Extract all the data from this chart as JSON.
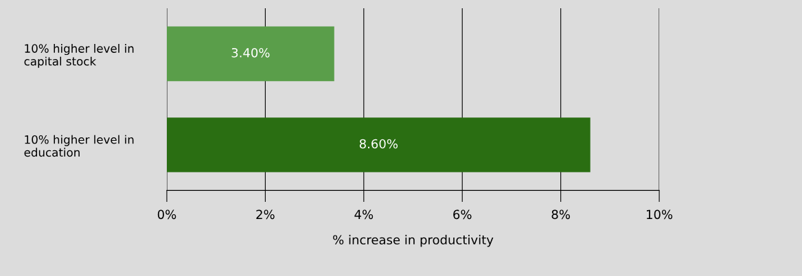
{
  "chart_data": {
    "type": "bar",
    "orientation": "horizontal",
    "categories": [
      "10% higher level in\ncapital stock",
      "10% higher level in\neducation"
    ],
    "series": [
      {
        "values": [
          3.4,
          8.6
        ],
        "colors": [
          "#5a9e4a",
          "#2a6e12"
        ],
        "value_labels": [
          "3.40%",
          "8.60%"
        ]
      }
    ],
    "xlabel": "% increase in productivity",
    "xlim": [
      0,
      10
    ],
    "xticks": [
      {
        "value": 0,
        "label": "0%"
      },
      {
        "value": 2,
        "label": "2%"
      },
      {
        "value": 4,
        "label": "4%"
      },
      {
        "value": 6,
        "label": "6%"
      },
      {
        "value": 8,
        "label": "8%"
      },
      {
        "value": 10,
        "label": "10%"
      }
    ],
    "grid": "x",
    "legend": false
  }
}
